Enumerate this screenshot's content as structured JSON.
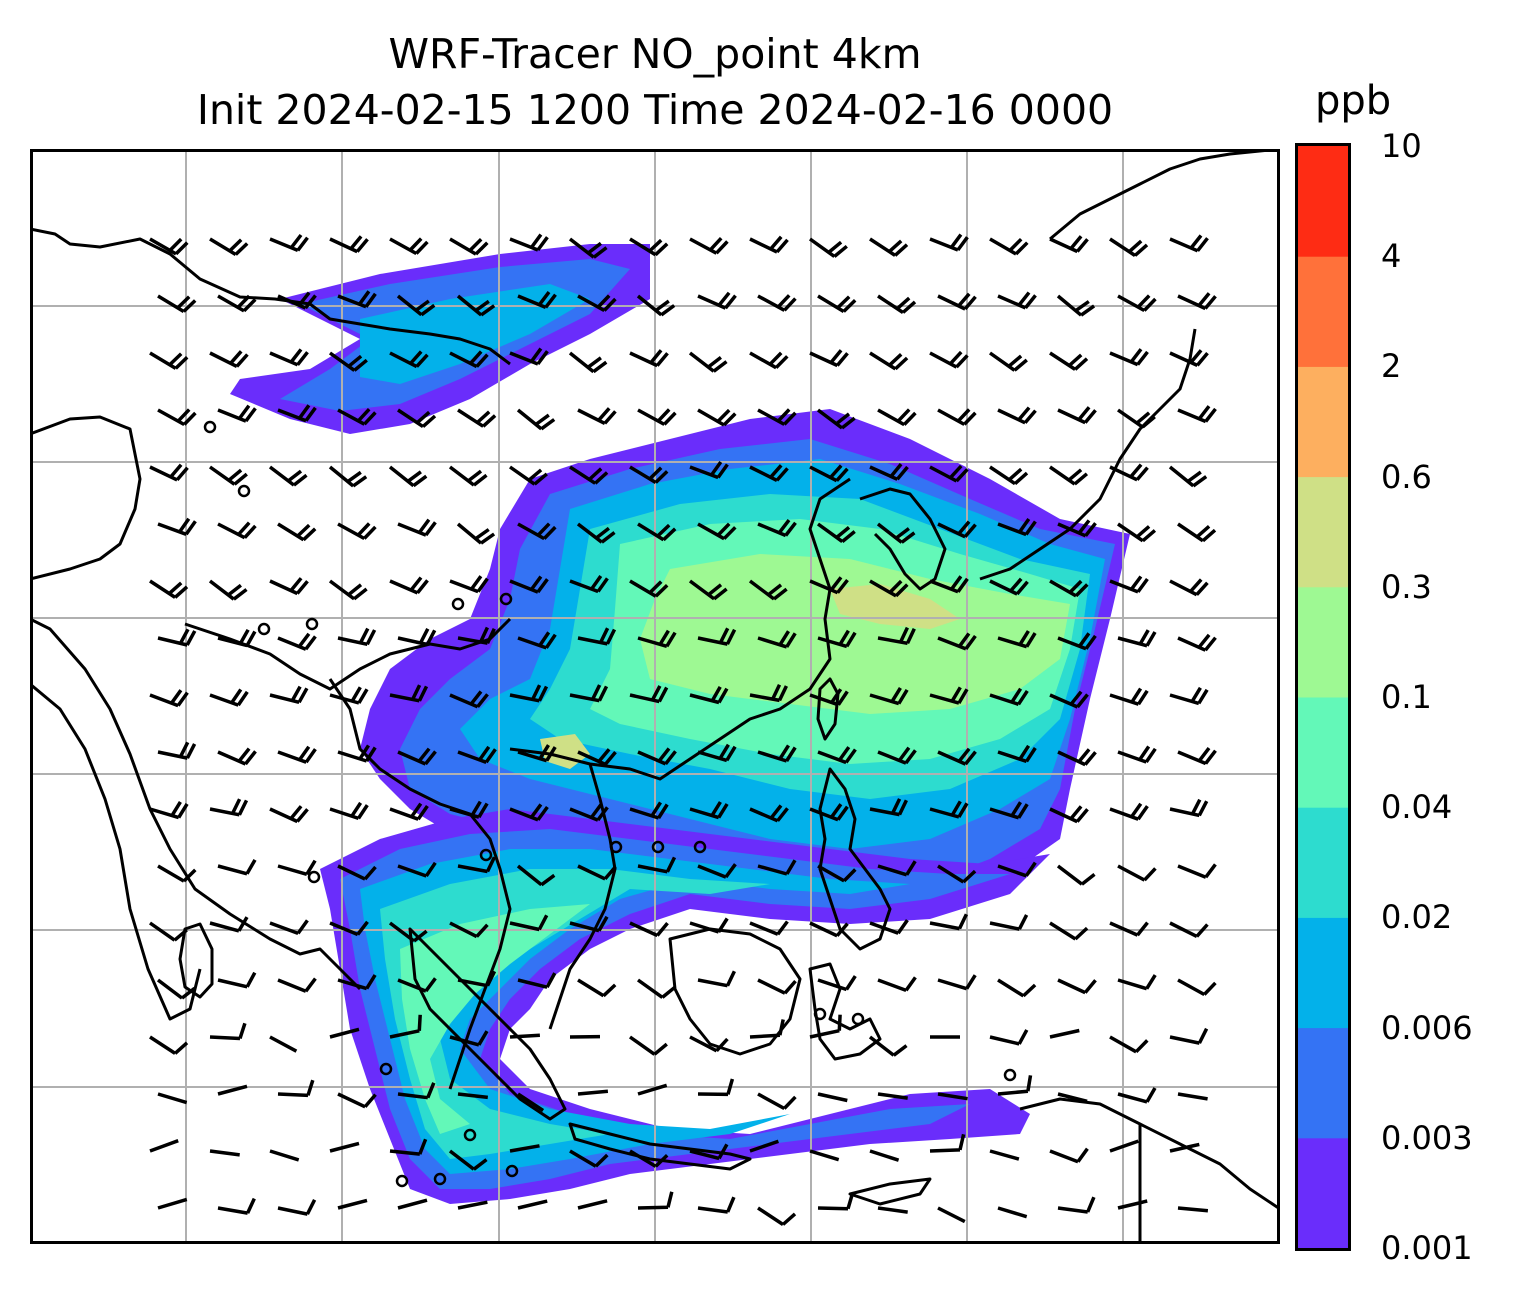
{
  "title_line1": "WRF-Tracer NO_point 4km",
  "title_line2": "Init 2024-02-15 1200 Time 2024-02-16 0000",
  "colorbar": {
    "unit": "ppb",
    "levels": [
      "0.001",
      "0.003",
      "0.006",
      "0.02",
      "0.04",
      "0.1",
      "0.3",
      "0.6",
      "2",
      "4",
      "10"
    ],
    "colors": [
      "#6a2dfb",
      "#3473f4",
      "#03b1ea",
      "#2ddccf",
      "#63f8b8",
      "#9ef993",
      "#cfe086",
      "#fdaf5f",
      "#ff713a",
      "#fe2c14"
    ]
  },
  "map": {
    "gridlines": true,
    "wind_barbs": true,
    "coastlines": true,
    "basemap_color": "#ffffff"
  }
}
